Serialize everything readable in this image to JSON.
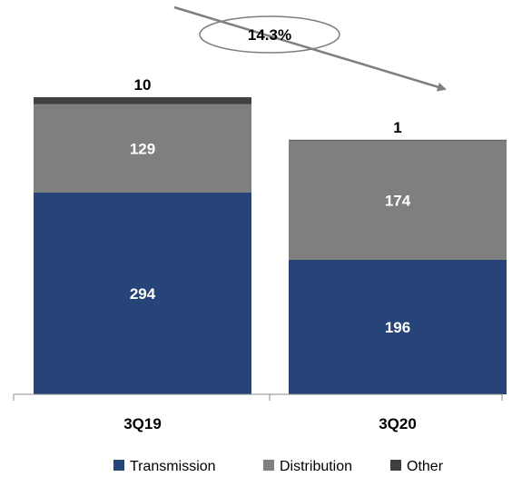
{
  "chart_data": {
    "type": "bar",
    "stacked": true,
    "categories": [
      "3Q19",
      "3Q20"
    ],
    "series": [
      {
        "name": "Transmission",
        "values": [
          294,
          196
        ],
        "color": "#264478"
      },
      {
        "name": "Distribution",
        "values": [
          129,
          174
        ],
        "color": "#7f7f7f"
      },
      {
        "name": "Other",
        "values": [
          10,
          1
        ],
        "color": "#404040"
      }
    ],
    "top_labels": [
      "10",
      "1"
    ],
    "annotation": {
      "text": "14.3%"
    },
    "legend_position": "bottom",
    "grid": false,
    "ylim": [
      0,
      433
    ]
  }
}
